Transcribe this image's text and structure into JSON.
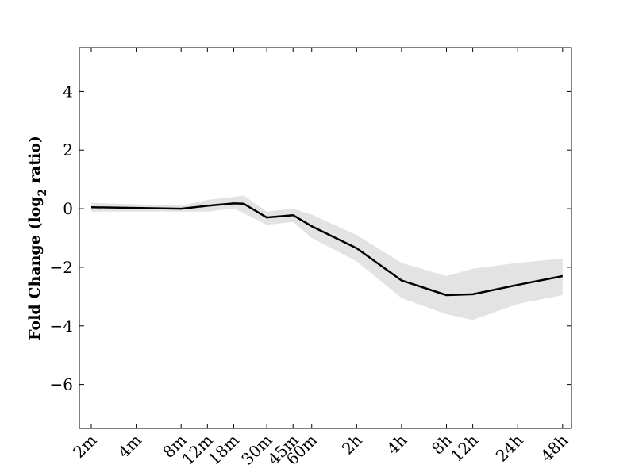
{
  "chart_data": {
    "type": "line",
    "xlabel": "",
    "ylabel": {
      "prefix": "Fold Change (log",
      "subscript": "2",
      "suffix": " ratio)"
    },
    "ylim": [
      -7.5,
      5.5
    ],
    "yticks": [
      4,
      2,
      0,
      -2,
      -4,
      -6
    ],
    "ytick_labels": [
      "4",
      "2",
      "0",
      "−2",
      "−4",
      "−6"
    ],
    "categories": [
      "2m",
      "4m",
      "8m",
      "12m",
      "18m",
      "30m",
      "45m",
      "60m",
      "2h",
      "4h",
      "8h",
      "12h",
      "24h",
      "48h"
    ],
    "grid": false,
    "series": [
      {
        "points": [
          {
            "x": "2m",
            "y": 0.05,
            "lo": -0.1,
            "hi": 0.2
          },
          {
            "x": "8m",
            "y": 0.0,
            "lo": -0.1,
            "hi": 0.1
          },
          {
            "x": "12m",
            "y": 0.1,
            "lo": -0.1,
            "hi": 0.3
          },
          {
            "x": "18m",
            "y": 0.18,
            "lo": 0.0,
            "hi": 0.4
          },
          {
            "x": "21m",
            "y": 0.17,
            "lo": -0.15,
            "hi": 0.45
          },
          {
            "x": "30m",
            "y": -0.3,
            "lo": -0.55,
            "hi": -0.1
          },
          {
            "x": "45m",
            "y": -0.22,
            "lo": -0.45,
            "hi": 0.0
          },
          {
            "x": "60m",
            "y": -0.6,
            "lo": -1.0,
            "hi": -0.2
          },
          {
            "x": "2h",
            "y": -1.35,
            "lo": -1.8,
            "hi": -0.9
          },
          {
            "x": "4h",
            "y": -2.45,
            "lo": -3.05,
            "hi": -1.85
          },
          {
            "x": "8h",
            "y": -2.95,
            "lo": -3.6,
            "hi": -2.3
          },
          {
            "x": "12h",
            "y": -2.92,
            "lo": -3.8,
            "hi": -2.05
          },
          {
            "x": "24h",
            "y": -2.6,
            "lo": -3.25,
            "hi": -1.85
          },
          {
            "x": "48h",
            "y": -2.3,
            "lo": -2.95,
            "hi": -1.7
          }
        ]
      }
    ],
    "colors": {
      "line": "#000000",
      "band": "#e3e3e3",
      "axis": "#000000"
    }
  }
}
